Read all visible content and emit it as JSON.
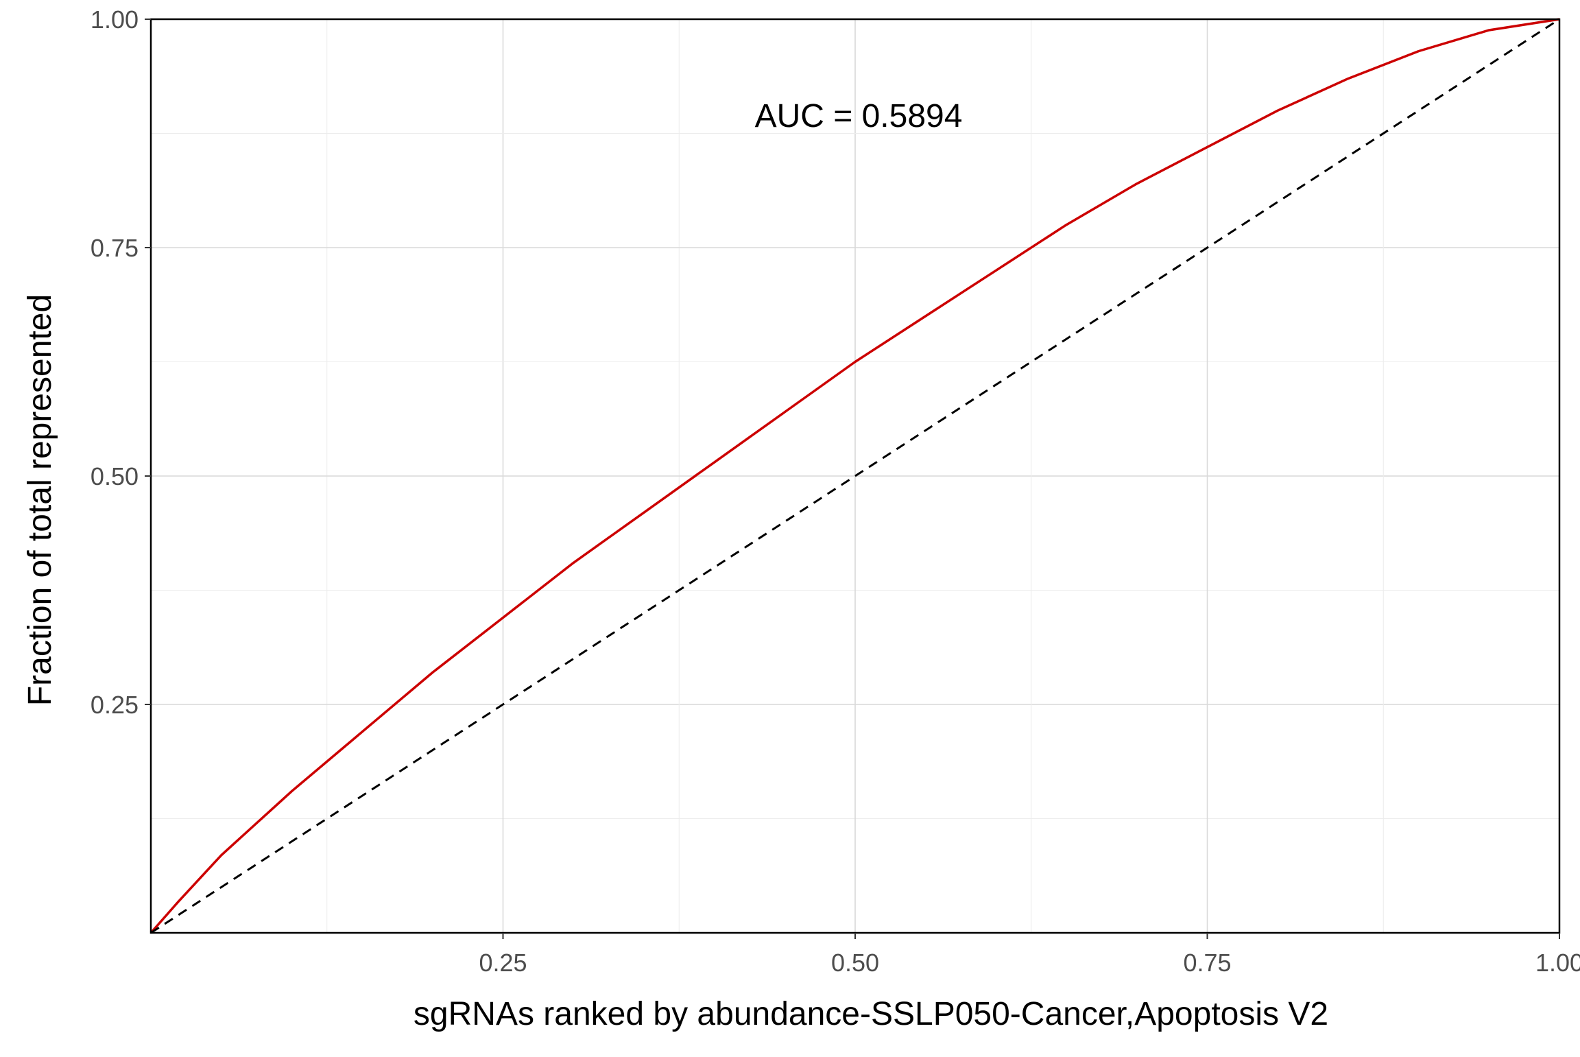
{
  "chart_data": {
    "type": "line",
    "title": "",
    "xlabel": "sgRNAs ranked by abundance-SSLP050-Cancer,Apoptosis V2",
    "ylabel": "Fraction of total represented",
    "xlim": [
      0,
      1
    ],
    "ylim": [
      0,
      1
    ],
    "x_ticks": [
      0.25,
      0.5,
      0.75,
      1.0
    ],
    "x_tick_labels": [
      "0.25",
      "0.50",
      "0.75",
      "1.00"
    ],
    "y_ticks": [
      0.25,
      0.5,
      0.75,
      1.0
    ],
    "y_tick_labels": [
      "0.25",
      "0.50",
      "0.75",
      "1.00"
    ],
    "grid": true,
    "annotation": {
      "text": "AUC = 0.5894",
      "x": 0.5,
      "y": 0.895
    },
    "series": [
      {
        "color": "#cc0000",
        "style": "solid",
        "x": [
          0,
          0.02,
          0.05,
          0.1,
          0.15,
          0.2,
          0.25,
          0.3,
          0.35,
          0.4,
          0.45,
          0.5,
          0.55,
          0.6,
          0.65,
          0.7,
          0.75,
          0.8,
          0.85,
          0.9,
          0.95,
          1.0
        ],
        "y": [
          0,
          0.035,
          0.085,
          0.155,
          0.22,
          0.285,
          0.345,
          0.405,
          0.46,
          0.515,
          0.57,
          0.625,
          0.675,
          0.725,
          0.775,
          0.82,
          0.86,
          0.9,
          0.935,
          0.965,
          0.988,
          1.0
        ]
      },
      {
        "color": "#000000",
        "style": "dashed",
        "x": [
          0,
          1
        ],
        "y": [
          0,
          1
        ]
      }
    ]
  }
}
